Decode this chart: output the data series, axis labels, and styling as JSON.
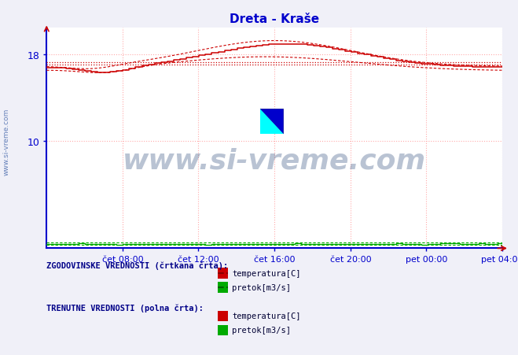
{
  "title": "Dreta - Kraše",
  "title_color": "#0000cc",
  "bg_color": "#f0f0f8",
  "plot_bg_color": "#ffffff",
  "grid_color": "#ffaaaa",
  "axis_color": "#0000cc",
  "x_tick_labels": [
    "čet 08:00",
    "čet 12:00",
    "čet 16:00",
    "čet 20:00",
    "pet 00:00",
    "pet 04:00"
  ],
  "x_tick_positions": [
    0.167,
    0.333,
    0.5,
    0.667,
    0.833,
    1.0
  ],
  "y_ticks": [
    10,
    18
  ],
  "ylim": [
    0,
    20.5
  ],
  "xlim": [
    0,
    1
  ],
  "temp_color": "#cc0000",
  "pretok_color": "#00aa00",
  "watermark_text": "www.si-vreme.com",
  "watermark_color": "#1a3a6e",
  "legend_label1": "ZGODOVINSKE VREDNOSTI (črtkana črta):",
  "legend_label2": "TRENUTNE VREDNOSTI (polna črta):",
  "leg_temp": "temperatura[C]",
  "leg_pretok": "pretok[m3/s]",
  "n_points": 288
}
